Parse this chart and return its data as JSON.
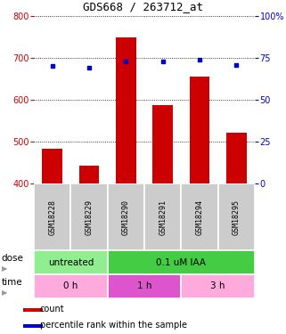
{
  "title": "GDS668 / 263712_at",
  "samples": [
    "GSM18228",
    "GSM18229",
    "GSM18290",
    "GSM18291",
    "GSM18294",
    "GSM18295"
  ],
  "counts": [
    483,
    443,
    748,
    588,
    655,
    522
  ],
  "percentiles": [
    70,
    69,
    73,
    73,
    74,
    71
  ],
  "count_baseline": 400,
  "left_ylim": [
    400,
    800
  ],
  "right_ylim": [
    0,
    100
  ],
  "left_yticks": [
    400,
    500,
    600,
    700,
    800
  ],
  "right_yticks": [
    0,
    25,
    50,
    75,
    100
  ],
  "bar_color": "#cc0000",
  "dot_color": "#0000cc",
  "dose_labels": [
    {
      "text": "untreated",
      "span": [
        0,
        2
      ],
      "color": "#90ee90"
    },
    {
      "text": "0.1 uM IAA",
      "span": [
        2,
        6
      ],
      "color": "#44cc44"
    }
  ],
  "time_labels": [
    {
      "text": "0 h",
      "span": [
        0,
        2
      ],
      "color": "#ffaadd"
    },
    {
      "text": "1 h",
      "span": [
        2,
        4
      ],
      "color": "#dd55cc"
    },
    {
      "text": "3 h",
      "span": [
        4,
        6
      ],
      "color": "#ffaadd"
    }
  ],
  "arrow_color": "#999999",
  "gsm_box_color": "#cccccc",
  "legend_red_label": "count",
  "legend_blue_label": "percentile rank within the sample",
  "right_tick_color": "#0000cc",
  "left_tick_color": "#cc0000",
  "title_fontsize": 9,
  "tick_fontsize": 7,
  "label_fontsize": 7.5,
  "gsm_fontsize": 6,
  "dose_fontsize": 7.5,
  "time_fontsize": 7.5,
  "legend_fontsize": 7
}
